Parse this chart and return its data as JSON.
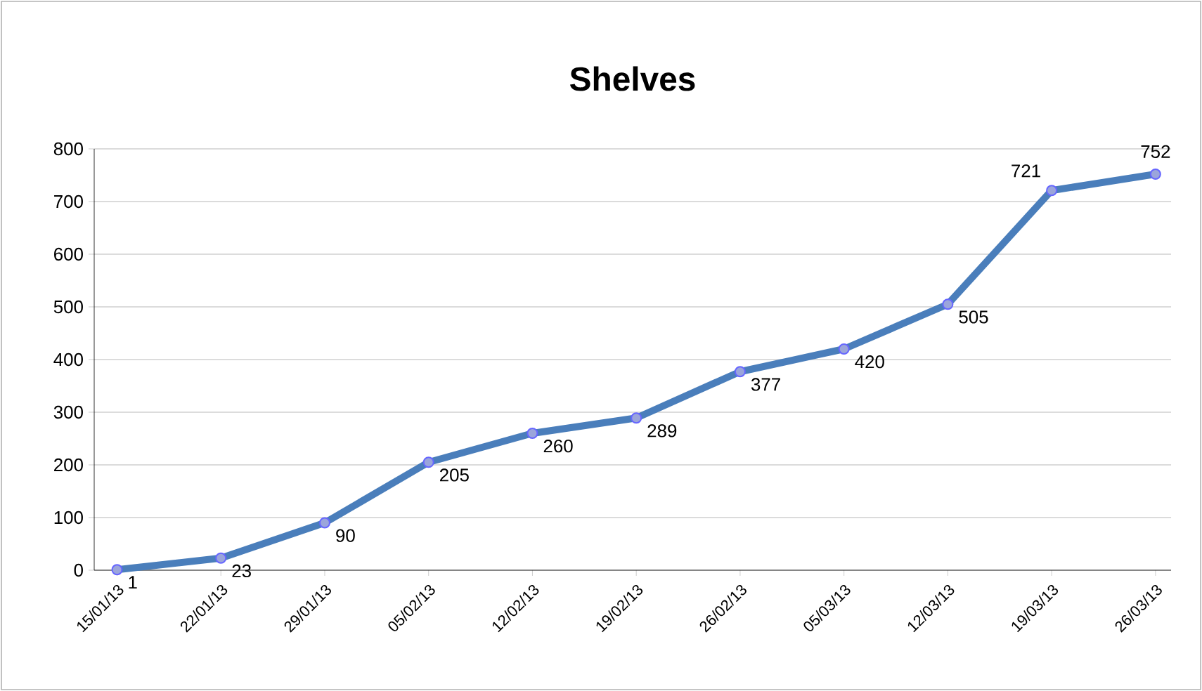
{
  "chart_data": {
    "type": "line",
    "title": "Shelves",
    "categories": [
      "15/01/13",
      "22/01/13",
      "29/01/13",
      "05/02/13",
      "12/02/13",
      "19/02/13",
      "26/02/13",
      "05/03/13",
      "12/03/13",
      "19/03/13",
      "26/03/13"
    ],
    "values": [
      1,
      23,
      90,
      205,
      260,
      289,
      377,
      420,
      505,
      721,
      752
    ],
    "color": "#4a7ebb",
    "ylim": [
      0,
      800
    ],
    "yticks": [
      0,
      100,
      200,
      300,
      400,
      500,
      600,
      700,
      800
    ],
    "grid": "y",
    "marker": "circle",
    "line_style": "solid",
    "data_labels": true
  }
}
